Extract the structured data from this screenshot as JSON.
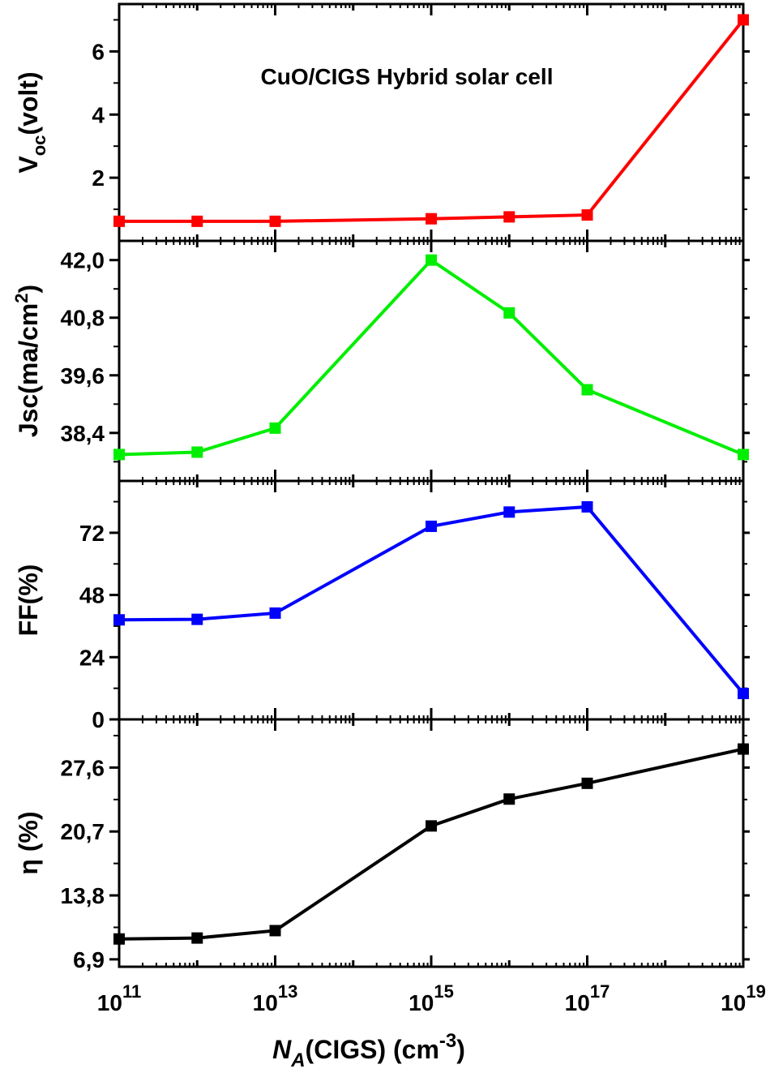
{
  "chart_data": {
    "type": "line",
    "x_scale": "log",
    "annotation": "CuO/CIGS Hybrid solar cell",
    "xlabel": {
      "main": "N",
      "sub": "A",
      "rest": "(CIGS) (cm",
      "sup": "-3",
      "close": ")"
    },
    "xticks": [
      {
        "base": "10",
        "exp": "11",
        "value": 100000000000.0
      },
      {
        "base": "10",
        "exp": "13",
        "value": 10000000000000.0
      },
      {
        "base": "10",
        "exp": "15",
        "value": 1000000000000000.0
      },
      {
        "base": "10",
        "exp": "17",
        "value": 1e+17
      },
      {
        "base": "10",
        "exp": "19",
        "value": 1e+19
      }
    ],
    "xlim": [
      100000000000.0,
      1e+19
    ],
    "x": [
      100000000000.0,
      1000000000000.0,
      10000000000000.0,
      1000000000000000.0,
      1e+16,
      1e+17,
      1e+19
    ],
    "panels": [
      {
        "id": "voc",
        "ylabel": {
          "main": "V",
          "sub": "oc",
          "rest": "(volt)"
        },
        "color": "#ff0000",
        "ylim": [
          0,
          7.5
        ],
        "yticks": [
          {
            "v": 2,
            "label": "2"
          },
          {
            "v": 4,
            "label": "4"
          },
          {
            "v": 6,
            "label": "6"
          }
        ],
        "values": [
          0.62,
          0.62,
          0.62,
          0.7,
          0.76,
          0.82,
          7.0
        ]
      },
      {
        "id": "jsc",
        "ylabel": {
          "main": "Jsc(ma/cm",
          "sup": "2",
          "close": ")"
        },
        "color": "#00ee00",
        "ylim": [
          37.4,
          42.4
        ],
        "yticks": [
          {
            "v": 38.4,
            "label": "38,4"
          },
          {
            "v": 39.6,
            "label": "39,6"
          },
          {
            "v": 40.8,
            "label": "40,8"
          },
          {
            "v": 42.0,
            "label": "42,0"
          }
        ],
        "values": [
          37.95,
          38.0,
          38.5,
          42.0,
          40.9,
          39.3,
          37.95
        ]
      },
      {
        "id": "ff",
        "ylabel": {
          "main": "FF(%)"
        },
        "color": "#0000ff",
        "ylim": [
          0,
          92
        ],
        "yticks": [
          {
            "v": 0,
            "label": "0"
          },
          {
            "v": 24,
            "label": "24"
          },
          {
            "v": 48,
            "label": "48"
          },
          {
            "v": 72,
            "label": "72"
          }
        ],
        "values": [
          38.4,
          38.6,
          41.0,
          74.5,
          80.0,
          82.0,
          10.0
        ]
      },
      {
        "id": "eta",
        "ylabel": {
          "main": "η (%)"
        },
        "color": "#000000",
        "ylim": [
          6.1,
          32.8
        ],
        "yticks": [
          {
            "v": 6.9,
            "label": "6,9"
          },
          {
            "v": 13.8,
            "label": "13,8"
          },
          {
            "v": 20.7,
            "label": "20,7"
          },
          {
            "v": 27.6,
            "label": "27,6"
          }
        ],
        "values": [
          9.1,
          9.2,
          10.0,
          21.3,
          24.2,
          25.9,
          29.6
        ]
      }
    ]
  }
}
